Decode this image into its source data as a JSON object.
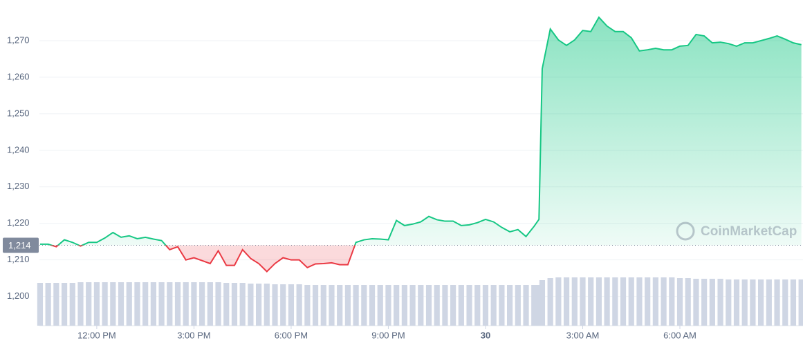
{
  "chart_data": {
    "type": "line",
    "x": [
      10.25,
      10.5,
      10.75,
      11,
      11.25,
      11.5,
      11.75,
      12,
      12.25,
      12.5,
      12.75,
      13,
      13.25,
      13.5,
      13.75,
      14,
      14.25,
      14.5,
      14.75,
      15,
      15.25,
      15.5,
      15.75,
      16,
      16.25,
      16.5,
      16.75,
      17,
      17.25,
      17.5,
      17.75,
      18,
      18.25,
      18.5,
      18.75,
      19,
      19.25,
      19.5,
      19.75,
      20,
      20.25,
      20.5,
      20.75,
      21,
      21.25,
      21.5,
      21.75,
      22,
      22.25,
      22.5,
      22.75,
      23,
      23.25,
      23.5,
      23.75,
      24,
      24.25,
      24.5,
      24.75,
      25,
      25.25,
      25.5,
      25.65,
      25.75,
      26,
      26.25,
      26.5,
      26.75,
      27,
      27.25,
      27.5,
      27.75,
      28,
      28.25,
      28.5,
      28.75,
      29,
      29.25,
      29.5,
      29.75,
      30,
      30.25,
      30.5,
      30.75,
      31,
      31.25,
      31.5,
      31.75,
      32,
      32.25,
      32.5,
      32.75,
      33,
      33.25,
      33.5,
      33.75
    ],
    "values": [
      1214.3,
      1214.3,
      1213.6,
      1215.5,
      1214.8,
      1213.8,
      1214.8,
      1214.8,
      1216,
      1217.5,
      1216.2,
      1216.6,
      1215.8,
      1216.2,
      1215.7,
      1215.3,
      1212.8,
      1213.6,
      1210,
      1210.6,
      1209.8,
      1209,
      1212.5,
      1208.5,
      1208.5,
      1212.8,
      1210.4,
      1209,
      1206.8,
      1209,
      1210.6,
      1210,
      1210,
      1207.9,
      1208.9,
      1209,
      1209.2,
      1208.7,
      1208.7,
      1214.8,
      1215.5,
      1215.8,
      1215.7,
      1215.5,
      1220.8,
      1219.4,
      1219.8,
      1220.4,
      1221.9,
      1221,
      1220.6,
      1220.6,
      1219.4,
      1219.6,
      1220.2,
      1221.1,
      1220.4,
      1218.9,
      1217.7,
      1218.3,
      1216.4,
      1219.2,
      1221.1,
      1262.3,
      1273.2,
      1270.2,
      1268.7,
      1270.2,
      1272.8,
      1272.5,
      1276.4,
      1274,
      1272.5,
      1272.5,
      1270.8,
      1267.2,
      1267.5,
      1267.9,
      1267.5,
      1267.5,
      1268.5,
      1268.7,
      1271.7,
      1271.3,
      1269.4,
      1269.6,
      1269.2,
      1268.5,
      1269.4,
      1269.4,
      1270,
      1270.6,
      1271.3,
      1270.4,
      1269.4,
      1268.9
    ],
    "volume": [
      62,
      62,
      62,
      62,
      62,
      63,
      63,
      63,
      63,
      63,
      63,
      63,
      63,
      63,
      63,
      63,
      63,
      63,
      63,
      63,
      63,
      63,
      63,
      62,
      62,
      62,
      61,
      61,
      61,
      60,
      60,
      60,
      60,
      59,
      59,
      59,
      59,
      59,
      59,
      59,
      59,
      59,
      59,
      59,
      59,
      59,
      59,
      59,
      59,
      59,
      59,
      59,
      59,
      59,
      59,
      59,
      59,
      59,
      59,
      59,
      59,
      59,
      59,
      66,
      69,
      70,
      70,
      70,
      70,
      70,
      70,
      70,
      70,
      70,
      70,
      70,
      70,
      70,
      70,
      70,
      69,
      69,
      68,
      68,
      68,
      68,
      67,
      67,
      67,
      67,
      67,
      67,
      67,
      67,
      67,
      67
    ],
    "vlim": [
      0,
      100
    ],
    "colors": {
      "up": "#16c784",
      "down": "#ea3943",
      "volume": "#cfd6e4"
    },
    "baseline": {
      "value": 1214,
      "label": "1,214"
    },
    "xlim": [
      10.23,
      33.8
    ],
    "xticks": [
      {
        "value": 12,
        "label": "12:00 PM"
      },
      {
        "value": 15,
        "label": "3:00 PM"
      },
      {
        "value": 18,
        "label": "6:00 PM"
      },
      {
        "value": 21,
        "label": "9:00 PM"
      },
      {
        "value": 24,
        "label": "30"
      },
      {
        "value": 27,
        "label": "3:00 AM"
      },
      {
        "value": 30,
        "label": "6:00 AM"
      }
    ],
    "ylim": [
      1192,
      1280
    ],
    "yticks": [
      {
        "value": 1200,
        "label": "1,200"
      },
      {
        "value": 1210,
        "label": "1,210"
      },
      {
        "value": 1220,
        "label": "1,220"
      },
      {
        "value": 1230,
        "label": "1,230"
      },
      {
        "value": 1240,
        "label": "1,240"
      },
      {
        "value": 1250,
        "label": "1,250"
      },
      {
        "value": 1260,
        "label": "1,260"
      },
      {
        "value": 1270,
        "label": "1,270"
      }
    ],
    "grid": true,
    "watermark": "CoinMarketCap"
  }
}
